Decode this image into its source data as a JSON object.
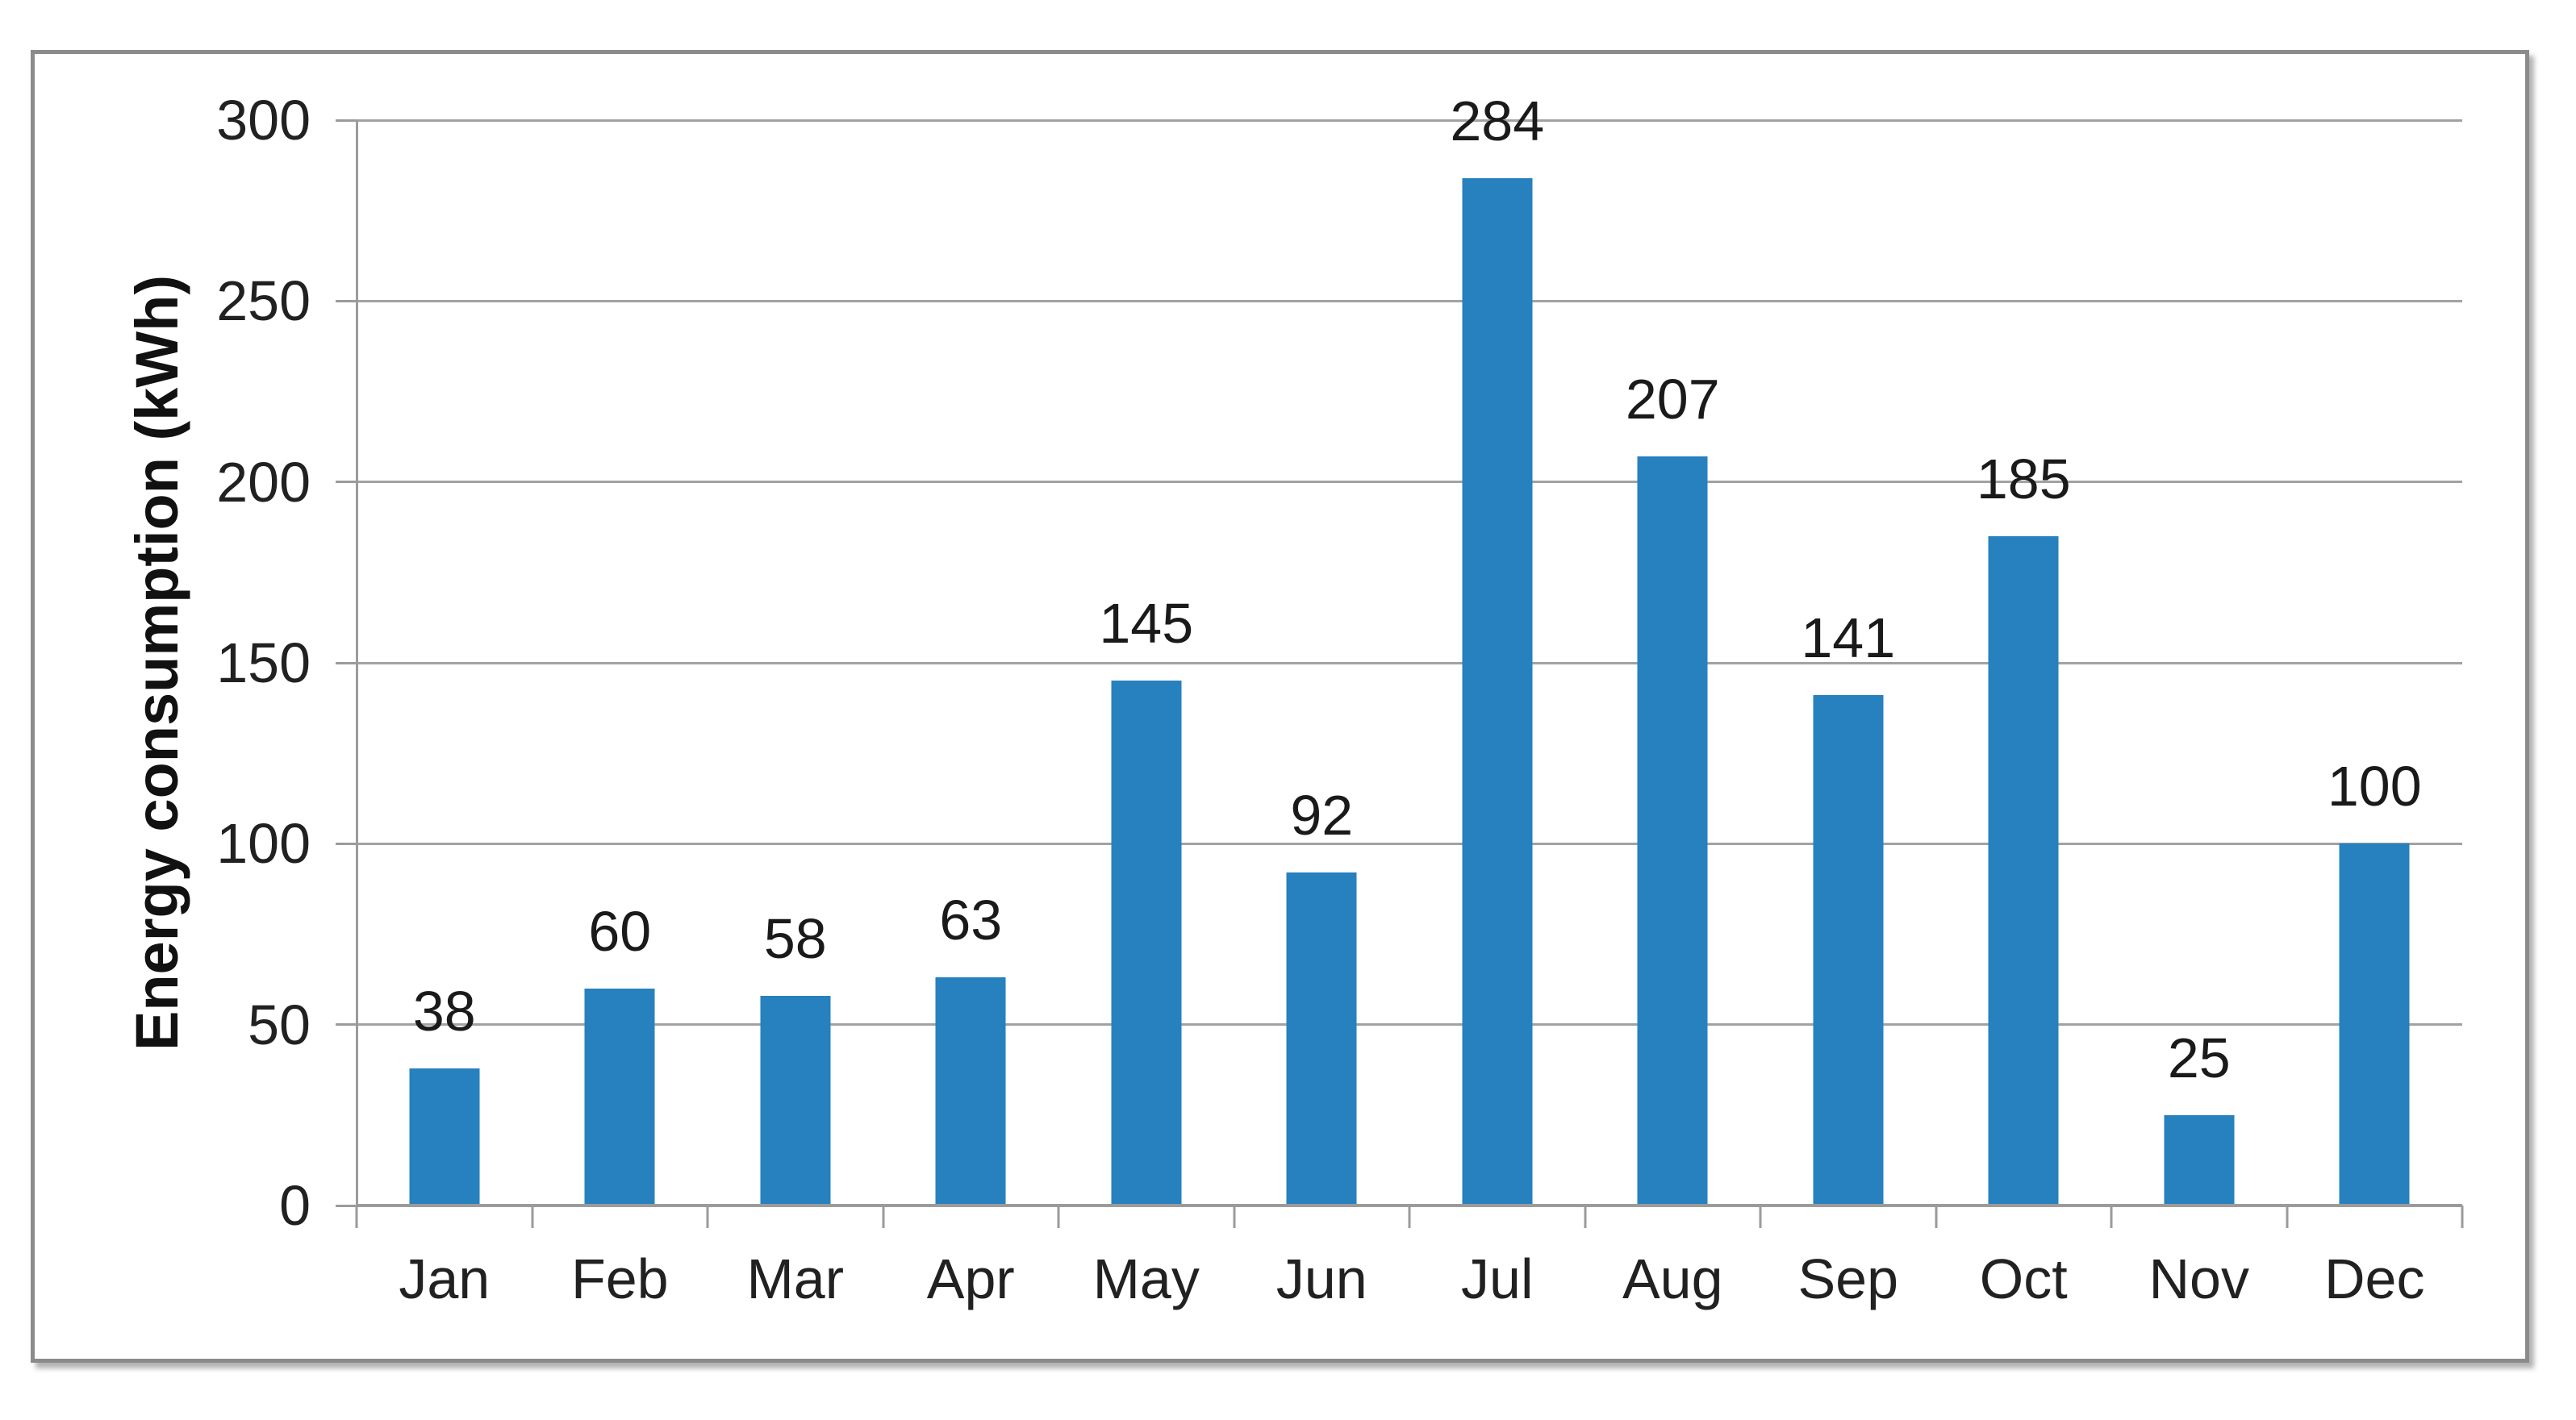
{
  "chart_data": {
    "type": "bar",
    "title": "",
    "xlabel": "",
    "ylabel": "Energy consumption (kWh)",
    "categories": [
      "Jan",
      "Feb",
      "Mar",
      "Apr",
      "May",
      "Jun",
      "Jul",
      "Aug",
      "Sep",
      "Oct",
      "Nov",
      "Dec"
    ],
    "values": [
      38,
      60,
      58,
      63,
      145,
      92,
      284,
      207,
      141,
      185,
      25,
      100
    ],
    "data_labels_shown": true,
    "ylim": [
      0,
      300
    ],
    "yticks": [
      0,
      50,
      100,
      150,
      200,
      250,
      300
    ],
    "grid": "horizontal",
    "legend_position": "none",
    "bar_width_fraction": 0.4,
    "colors": {
      "bar_fill": "#2681be",
      "gridline": "#a2a2a2",
      "axis_line": "#9b9b9b",
      "tick_label": "#212121",
      "data_label": "#1a1a1a",
      "axis_title": "#111111",
      "frame_border": "#8b8b8b",
      "background": "#ffffff"
    }
  }
}
